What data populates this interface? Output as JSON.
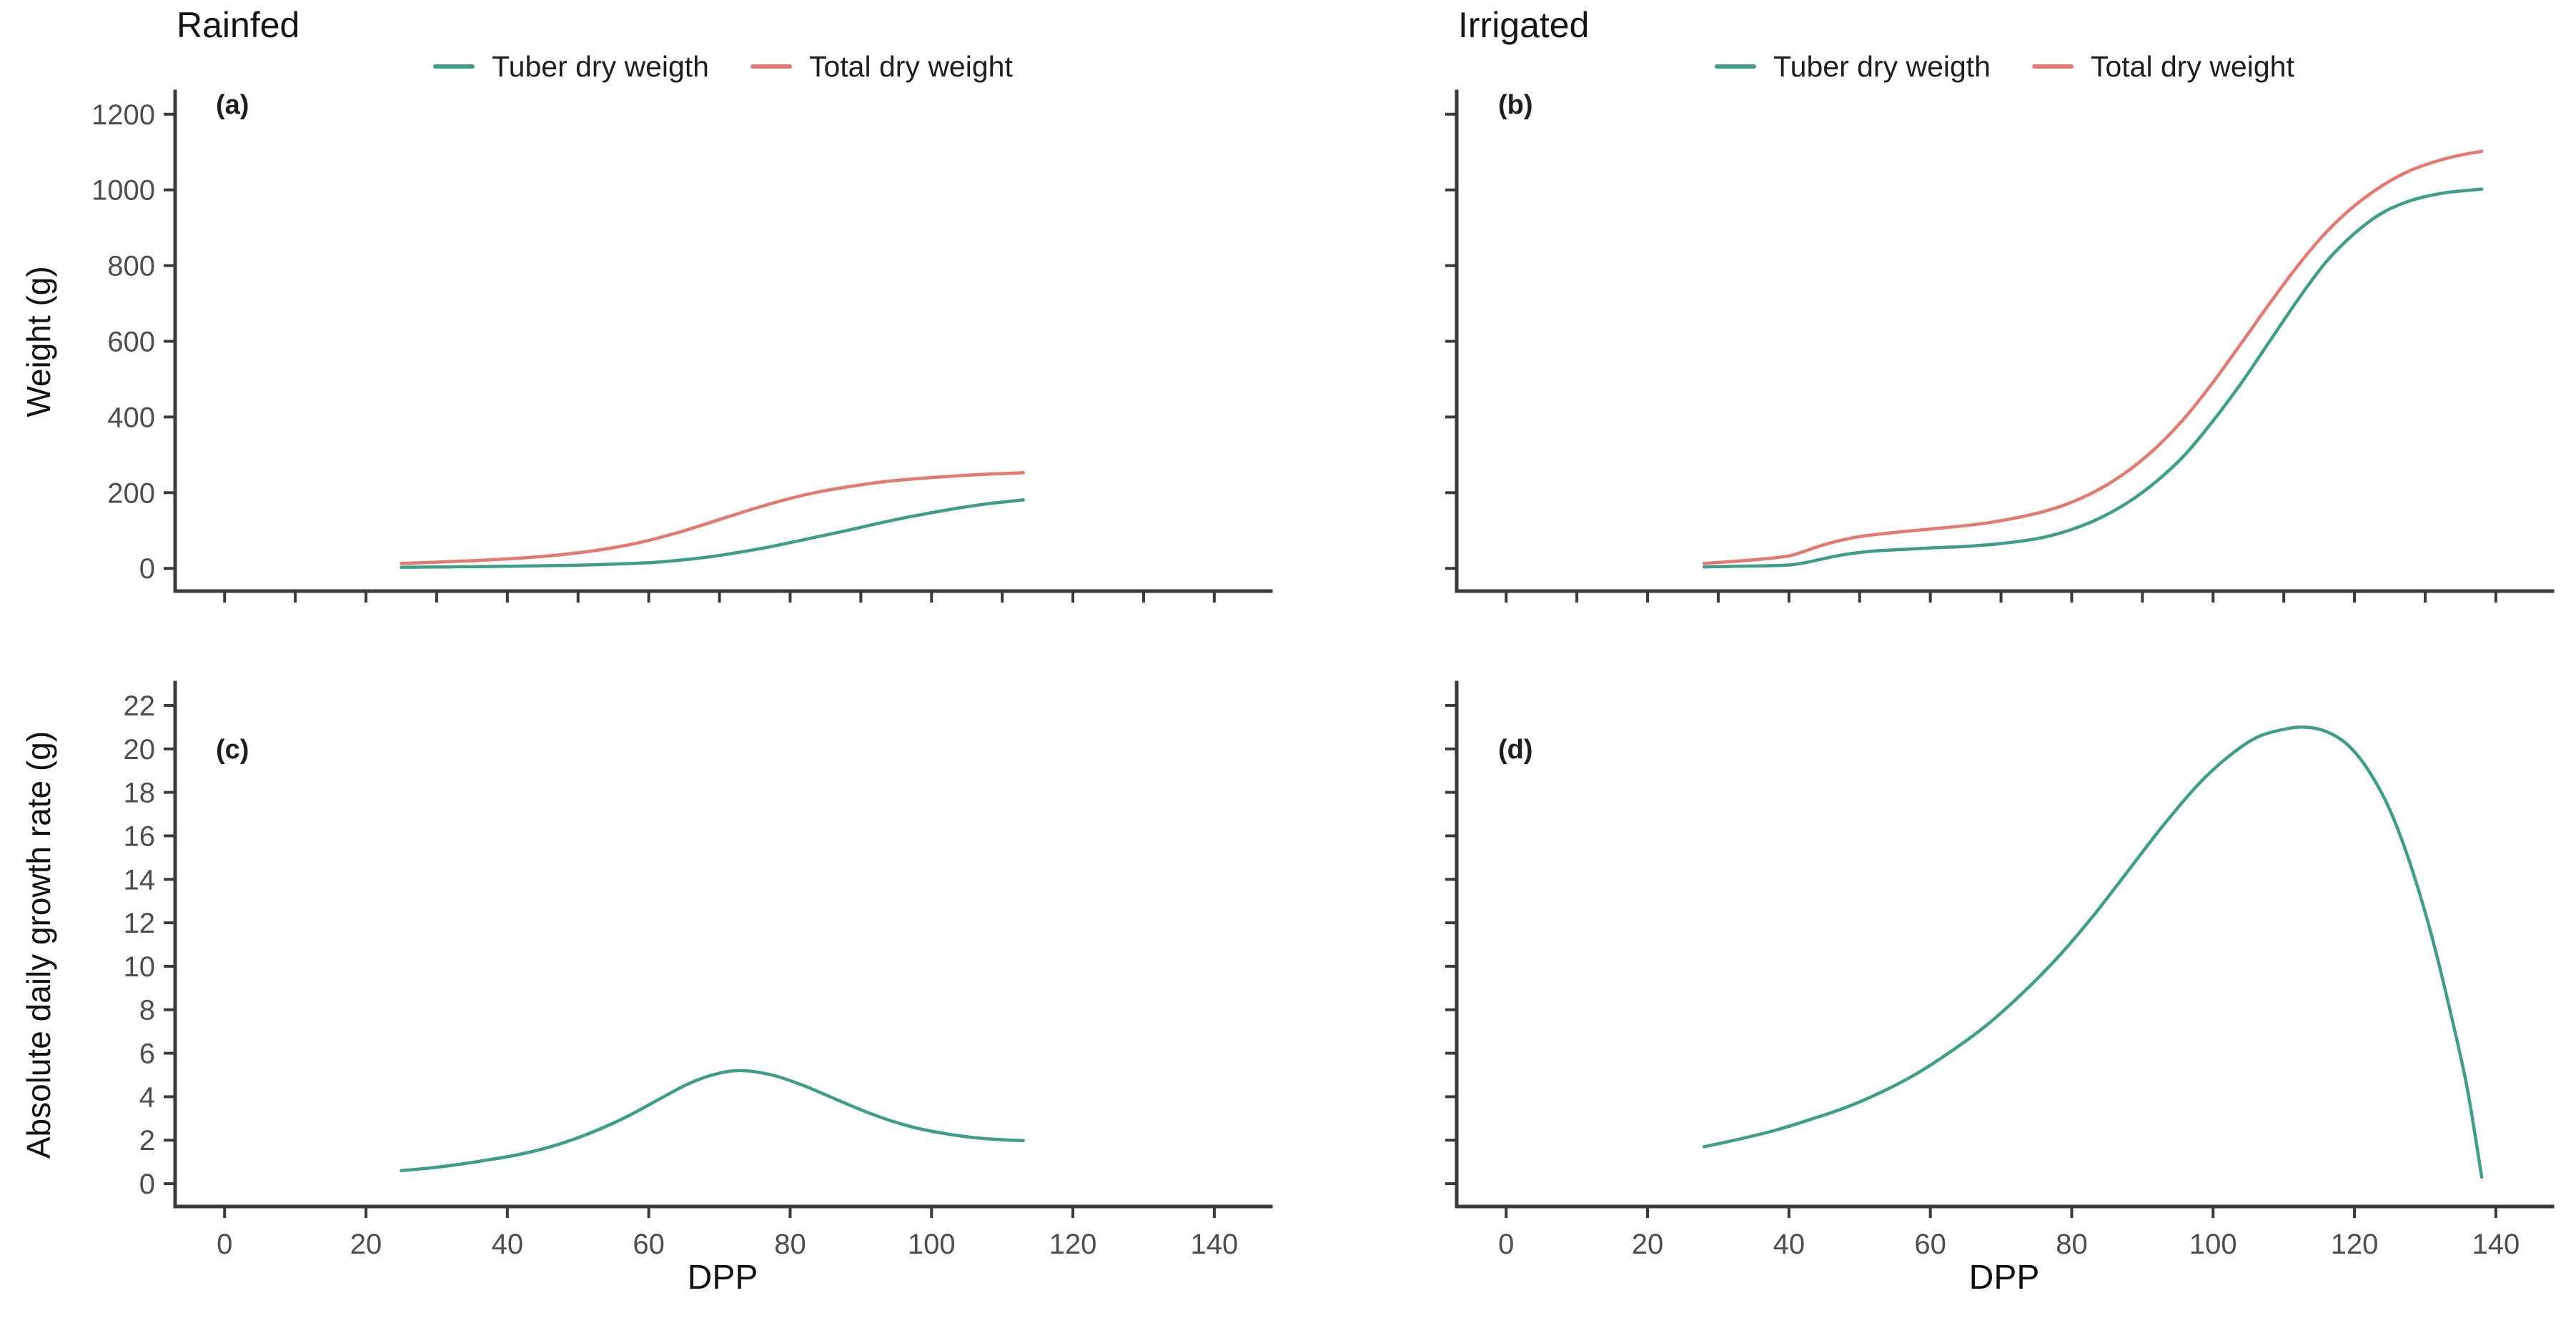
{
  "columns": [
    {
      "title": "Rainfed"
    },
    {
      "title": "Irrigated"
    }
  ],
  "legend": {
    "items": [
      {
        "label": "Tuber dry weigth",
        "color": "#3f9e87"
      },
      {
        "label": "Total dry weight",
        "color": "#e4796f"
      }
    ]
  },
  "axes": {
    "weight_ylabel": "Weight (g)",
    "agr_ylabel": "Absolute daily growth rate (g)",
    "xlabel": "DPP"
  },
  "colors": {
    "axis": "#3a3a3a",
    "tick_label": "#4d4d4d",
    "tuber_green": "#3f9e87",
    "total_red": "#e4796f"
  },
  "chart_data": [
    {
      "id": "a",
      "panel_label": "(a)",
      "type": "line",
      "row": "top",
      "col": "left",
      "title": "Rainfed",
      "xlabel": "DPP",
      "ylabel": "Weight (g)",
      "xlim": [
        -7,
        148
      ],
      "ylim": [
        -60,
        1260
      ],
      "yticks": {
        "values": [
          0,
          200,
          400,
          600,
          800,
          1000,
          1200
        ],
        "labels_shown": true
      },
      "xticks": {
        "values": [
          0,
          10,
          20,
          30,
          40,
          50,
          60,
          70,
          80,
          90,
          100,
          110,
          120,
          130,
          140
        ],
        "labels_shown": false
      },
      "legend_position": "top",
      "grid": false,
      "series": [
        {
          "name": "Tuber dry weigth",
          "color": "#3f9e87",
          "points": [
            [
              25,
              3
            ],
            [
              28,
              3.5
            ],
            [
              32,
              4
            ],
            [
              36,
              4.8
            ],
            [
              40,
              5.6
            ],
            [
              44,
              6.6
            ],
            [
              48,
              7.8
            ],
            [
              52,
              9.5
            ],
            [
              56,
              12
            ],
            [
              60,
              15
            ],
            [
              64,
              21
            ],
            [
              68,
              29
            ],
            [
              72,
              40
            ],
            [
              76,
              53
            ],
            [
              80,
              68
            ],
            [
              84,
              84
            ],
            [
              88,
              100
            ],
            [
              92,
              117
            ],
            [
              96,
              133
            ],
            [
              100,
              147
            ],
            [
              104,
              160
            ],
            [
              108,
              171
            ],
            [
              111,
              177
            ],
            [
              113,
              181
            ]
          ]
        },
        {
          "name": "Total dry weight",
          "color": "#e4796f",
          "points": [
            [
              25,
              13
            ],
            [
              28,
              15
            ],
            [
              32,
              18
            ],
            [
              36,
              21
            ],
            [
              40,
              25
            ],
            [
              44,
              30
            ],
            [
              48,
              37
            ],
            [
              52,
              46
            ],
            [
              56,
              58
            ],
            [
              60,
              74
            ],
            [
              64,
              94
            ],
            [
              68,
              117
            ],
            [
              72,
              141
            ],
            [
              76,
              164
            ],
            [
              80,
              185
            ],
            [
              84,
              202
            ],
            [
              88,
              215
            ],
            [
              92,
              226
            ],
            [
              96,
              234
            ],
            [
              100,
              240
            ],
            [
              104,
              245
            ],
            [
              108,
              249
            ],
            [
              111,
              251
            ],
            [
              113,
              253
            ]
          ]
        }
      ]
    },
    {
      "id": "b",
      "panel_label": "(b)",
      "type": "line",
      "row": "top",
      "col": "right",
      "title": "Irrigated",
      "xlabel": "DPP",
      "ylabel": "Weight (g)",
      "xlim": [
        -7,
        148
      ],
      "ylim": [
        -60,
        1260
      ],
      "yticks": {
        "values": [
          0,
          200,
          400,
          600,
          800,
          1000,
          1200
        ],
        "labels_shown": false
      },
      "xticks": {
        "values": [
          0,
          10,
          20,
          30,
          40,
          50,
          60,
          70,
          80,
          90,
          100,
          110,
          120,
          130,
          140
        ],
        "labels_shown": false
      },
      "legend_position": "top",
      "grid": false,
      "series": [
        {
          "name": "Tuber dry weigth",
          "color": "#3f9e87",
          "points": [
            [
              28,
              4
            ],
            [
              31,
              5
            ],
            [
              34,
              6
            ],
            [
              37,
              7
            ],
            [
              40,
              9
            ],
            [
              42,
              14
            ],
            [
              44,
              22
            ],
            [
              46,
              30
            ],
            [
              48,
              37
            ],
            [
              50,
              42
            ],
            [
              53,
              47
            ],
            [
              56,
              50
            ],
            [
              60,
              54
            ],
            [
              64,
              57
            ],
            [
              68,
              62
            ],
            [
              72,
              70
            ],
            [
              76,
              82
            ],
            [
              80,
              103
            ],
            [
              84,
              133
            ],
            [
              88,
              175
            ],
            [
              92,
              230
            ],
            [
              96,
              300
            ],
            [
              100,
              390
            ],
            [
              104,
              490
            ],
            [
              108,
              600
            ],
            [
              112,
              710
            ],
            [
              116,
              810
            ],
            [
              120,
              885
            ],
            [
              124,
              940
            ],
            [
              128,
              972
            ],
            [
              132,
              990
            ],
            [
              135,
              997
            ],
            [
              138,
              1002
            ]
          ]
        },
        {
          "name": "Total dry weight",
          "color": "#e4796f",
          "points": [
            [
              28,
              13
            ],
            [
              31,
              17
            ],
            [
              34,
              21
            ],
            [
              37,
              26
            ],
            [
              40,
              33
            ],
            [
              42,
              44
            ],
            [
              44,
              57
            ],
            [
              46,
              68
            ],
            [
              48,
              77
            ],
            [
              50,
              84
            ],
            [
              53,
              91
            ],
            [
              56,
              97
            ],
            [
              60,
              104
            ],
            [
              64,
              111
            ],
            [
              68,
              120
            ],
            [
              72,
              133
            ],
            [
              76,
              150
            ],
            [
              80,
              175
            ],
            [
              84,
              210
            ],
            [
              88,
              258
            ],
            [
              92,
              320
            ],
            [
              96,
              398
            ],
            [
              100,
              492
            ],
            [
              104,
              595
            ],
            [
              108,
              700
            ],
            [
              112,
              800
            ],
            [
              116,
              888
            ],
            [
              120,
              958
            ],
            [
              124,
              1012
            ],
            [
              128,
              1052
            ],
            [
              132,
              1078
            ],
            [
              135,
              1092
            ],
            [
              138,
              1102
            ]
          ]
        }
      ]
    },
    {
      "id": "c",
      "panel_label": "(c)",
      "type": "line",
      "row": "bottom",
      "col": "left",
      "title": "Rainfed",
      "xlabel": "DPP",
      "ylabel": "Absolute daily growth rate (g)",
      "xlim": [
        -7,
        148
      ],
      "ylim": [
        -1.05,
        23.05
      ],
      "yticks": {
        "values": [
          0,
          2,
          4,
          6,
          8,
          10,
          12,
          14,
          16,
          18,
          20,
          22
        ],
        "labels_shown": true
      },
      "xticks": {
        "values": [
          0,
          20,
          40,
          60,
          80,
          100,
          120,
          140
        ],
        "labels_shown": true
      },
      "legend_position": "none",
      "grid": false,
      "series": [
        {
          "name": "Tuber dry weigth",
          "color": "#3f9e87",
          "points": [
            [
              25,
              0.6
            ],
            [
              29,
              0.72
            ],
            [
              33,
              0.88
            ],
            [
              37,
              1.08
            ],
            [
              41,
              1.3
            ],
            [
              45,
              1.6
            ],
            [
              49,
              2.0
            ],
            [
              53,
              2.5
            ],
            [
              57,
              3.1
            ],
            [
              61,
              3.8
            ],
            [
              65,
              4.5
            ],
            [
              68,
              4.9
            ],
            [
              71,
              5.15
            ],
            [
              73,
              5.2
            ],
            [
              75,
              5.15
            ],
            [
              78,
              4.95
            ],
            [
              82,
              4.5
            ],
            [
              86,
              3.95
            ],
            [
              90,
              3.4
            ],
            [
              94,
              2.92
            ],
            [
              98,
              2.55
            ],
            [
              102,
              2.3
            ],
            [
              106,
              2.12
            ],
            [
              110,
              2.02
            ],
            [
              113,
              1.98
            ]
          ]
        }
      ]
    },
    {
      "id": "d",
      "panel_label": "(d)",
      "type": "line",
      "row": "bottom",
      "col": "right",
      "title": "Irrigated",
      "xlabel": "DPP",
      "ylabel": "Absolute daily growth rate (g)",
      "xlim": [
        -7,
        148
      ],
      "ylim": [
        -1.05,
        23.05
      ],
      "yticks": {
        "values": [
          0,
          2,
          4,
          6,
          8,
          10,
          12,
          14,
          16,
          18,
          20,
          22
        ],
        "labels_shown": false
      },
      "xticks": {
        "values": [
          0,
          20,
          40,
          60,
          80,
          100,
          120,
          140
        ],
        "labels_shown": true
      },
      "legend_position": "none",
      "grid": false,
      "series": [
        {
          "name": "Tuber dry weigth",
          "color": "#3f9e87",
          "points": [
            [
              28,
              1.7
            ],
            [
              33,
              2.05
            ],
            [
              38,
              2.45
            ],
            [
              43,
              2.95
            ],
            [
              48,
              3.5
            ],
            [
              53,
              4.2
            ],
            [
              58,
              5.05
            ],
            [
              63,
              6.1
            ],
            [
              68,
              7.3
            ],
            [
              73,
              8.75
            ],
            [
              78,
              10.4
            ],
            [
              83,
              12.3
            ],
            [
              88,
              14.4
            ],
            [
              93,
              16.5
            ],
            [
              98,
              18.4
            ],
            [
              102,
              19.6
            ],
            [
              106,
              20.5
            ],
            [
              110,
              20.9
            ],
            [
              113,
              21.0
            ],
            [
              116,
              20.8
            ],
            [
              119,
              20.2
            ],
            [
              122,
              19.0
            ],
            [
              125,
              17.2
            ],
            [
              128,
              14.6
            ],
            [
              131,
              11.3
            ],
            [
              134,
              7.3
            ],
            [
              136,
              4.3
            ],
            [
              138,
              0.3
            ]
          ]
        }
      ]
    }
  ]
}
